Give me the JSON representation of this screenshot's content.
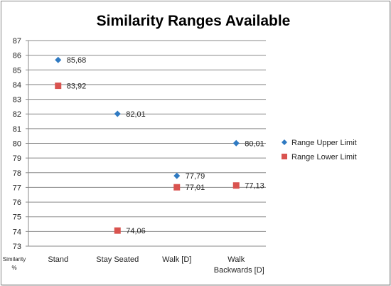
{
  "chart_data": {
    "type": "scatter",
    "title": "Similarity Ranges Available",
    "ylabel": "Similarity %",
    "ylabel_lines": [
      "Similarity",
      "%"
    ],
    "categories": [
      "Stand",
      "Stay Seated",
      "Walk [D]",
      "Walk Backwards [D]"
    ],
    "category_lines": [
      [
        "Stand"
      ],
      [
        "Stay Seated"
      ],
      [
        "Walk [D]"
      ],
      [
        "Walk",
        "Backwards [D]"
      ]
    ],
    "ylim": [
      73,
      87
    ],
    "yticks": [
      "73",
      "74",
      "75",
      "76",
      "77",
      "78",
      "79",
      "80",
      "81",
      "82",
      "83",
      "84",
      "85",
      "86",
      "87"
    ],
    "grid": true,
    "legend_position": "right",
    "series": [
      {
        "name": "Range Upper Limit",
        "marker": "diamond",
        "color": "#2f7ac2",
        "points": [
          {
            "cat": 0,
            "value": 85.68,
            "label": "85,68"
          },
          {
            "cat": 1,
            "value": 82.01,
            "label": "82,01"
          },
          {
            "cat": 2,
            "value": 77.79,
            "label": "77,79"
          },
          {
            "cat": 3,
            "value": 80.01,
            "label": "80,01"
          }
        ]
      },
      {
        "name": "Range Lower Limit",
        "marker": "square",
        "color": "#d9534f",
        "points": [
          {
            "cat": 0,
            "value": 83.92,
            "label": "83,92"
          },
          {
            "cat": 1,
            "value": 74.06,
            "label": "74,06"
          },
          {
            "cat": 2,
            "value": 77.01,
            "label": "77,01"
          },
          {
            "cat": 3,
            "value": 77.13,
            "label": "77,13"
          }
        ]
      }
    ]
  }
}
